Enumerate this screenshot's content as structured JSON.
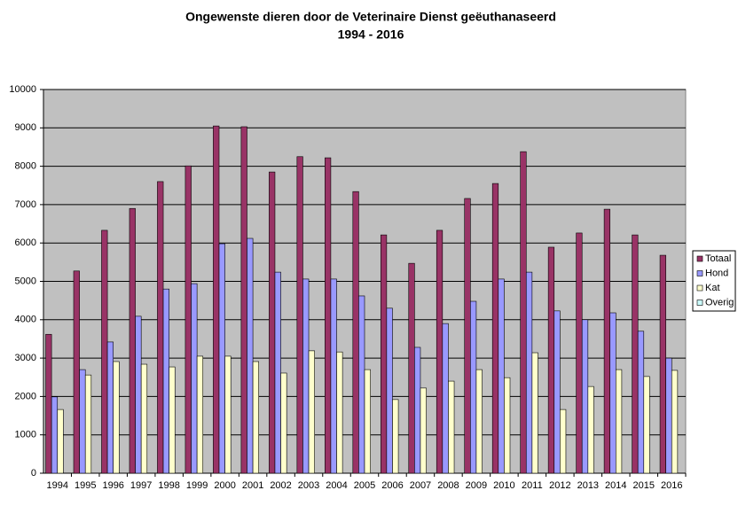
{
  "chart_data": {
    "type": "bar",
    "title": "Ongewenste dieren door de Veterinaire Dienst geëuthanaseerd",
    "subtitle": "1994 - 2016",
    "categories": [
      "1994",
      "1995",
      "1996",
      "1997",
      "1998",
      "1999",
      "2000",
      "2001",
      "2002",
      "2003",
      "2004",
      "2005",
      "2006",
      "2007",
      "2008",
      "2009",
      "2010",
      "2011",
      "2012",
      "2013",
      "2014",
      "2015",
      "2016"
    ],
    "series": [
      {
        "name": "Totaal",
        "color": "#993366",
        "values": [
          3620,
          5270,
          6330,
          6900,
          7600,
          8010,
          9050,
          9030,
          7850,
          8250,
          8220,
          7340,
          6210,
          5470,
          6330,
          7160,
          7550,
          8380,
          5890,
          6260,
          6880,
          6210,
          5680
        ]
      },
      {
        "name": "Hond",
        "color": "#9999ff",
        "values": [
          1990,
          2700,
          3420,
          4090,
          4800,
          4940,
          5980,
          6120,
          5240,
          5060,
          5060,
          4620,
          4300,
          3280,
          3900,
          4480,
          5060,
          5240,
          4230,
          4000,
          4180,
          3700,
          3000
        ]
      },
      {
        "name": "Kat",
        "color": "#ffffcc",
        "values": [
          1660,
          2560,
          2910,
          2840,
          2770,
          3050,
          3050,
          2910,
          2610,
          3190,
          3160,
          2700,
          1920,
          2220,
          2400,
          2700,
          2490,
          3140,
          1660,
          2260,
          2700,
          2520,
          2680
        ]
      },
      {
        "name": "Overig",
        "color": "#ccffff",
        "values": [
          0,
          0,
          0,
          0,
          0,
          0,
          0,
          0,
          0,
          0,
          0,
          0,
          0,
          0,
          0,
          0,
          0,
          0,
          0,
          0,
          0,
          0,
          0
        ]
      }
    ],
    "ylim": [
      0,
      10000
    ],
    "yticks": [
      0,
      1000,
      2000,
      3000,
      4000,
      5000,
      6000,
      7000,
      8000,
      9000,
      10000
    ],
    "grid": true,
    "legend": "right"
  }
}
